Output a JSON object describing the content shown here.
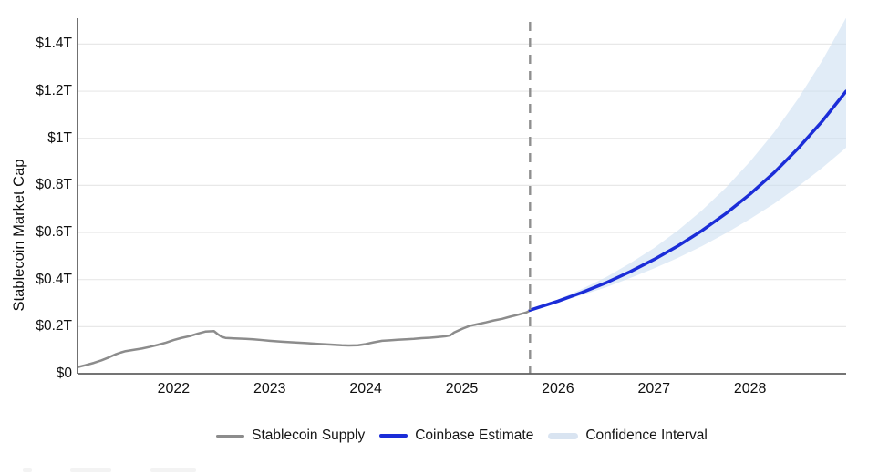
{
  "chart": {
    "y_axis_title": "Stablecoin Market Cap",
    "y_ticks": [
      {
        "label": "$0",
        "value": 0
      },
      {
        "label": "$0.2T",
        "value": 0.2
      },
      {
        "label": "$0.4T",
        "value": 0.4
      },
      {
        "label": "$0.6T",
        "value": 0.6
      },
      {
        "label": "$0.8T",
        "value": 0.8
      },
      {
        "label": "$1T",
        "value": 1.0
      },
      {
        "label": "$1.2T",
        "value": 1.2
      },
      {
        "label": "$1.4T",
        "value": 1.4
      }
    ],
    "x_ticks": [
      {
        "label": "2022",
        "year": 2022
      },
      {
        "label": "2023",
        "year": 2023
      },
      {
        "label": "2024",
        "year": 2024
      },
      {
        "label": "2025",
        "year": 2025
      },
      {
        "label": "2026",
        "year": 2026
      },
      {
        "label": "2027",
        "year": 2027
      },
      {
        "label": "2028",
        "year": 2028
      }
    ],
    "legend": [
      {
        "label": "Stablecoin Supply",
        "swatch": "line",
        "color": "#8c8c8c",
        "thickness": 3
      },
      {
        "label": "Coinbase Estimate",
        "swatch": "line",
        "color": "#1b2dd8",
        "thickness": 4
      },
      {
        "label": "Confidence Interval",
        "swatch": "band",
        "color": "#d9e4f1",
        "thickness": 7
      }
    ],
    "colors": {
      "historical_line": "#8c8c8c",
      "forecast_line": "#1b2dd8",
      "confidence_band": "#c9dcf0",
      "dashed_divider": "#8f8f8f",
      "gridline": "#e8e8e8",
      "axis": "#606060"
    }
  },
  "chart_data": {
    "type": "line",
    "title": "",
    "xlabel": "",
    "ylabel": "Stablecoin Market Cap",
    "xlim": [
      2021,
      2029
    ],
    "ylim": [
      0,
      1.51
    ],
    "grid": "horizontal",
    "legend_position": "bottom-center",
    "forecast_start": 2025.71,
    "units": "trillions USD",
    "series": [
      {
        "name": "Stablecoin Supply",
        "kind": "line",
        "color": "#8c8c8c",
        "width": 2.5,
        "x": [
          2021.0,
          2021.08,
          2021.17,
          2021.25,
          2021.33,
          2021.4,
          2021.45,
          2021.5,
          2021.58,
          2021.67,
          2021.75,
          2021.83,
          2021.92,
          2022.0,
          2022.08,
          2022.17,
          2022.25,
          2022.33,
          2022.42,
          2022.46,
          2022.5,
          2022.54,
          2022.63,
          2022.75,
          2022.83,
          2022.92,
          2023.0,
          2023.13,
          2023.25,
          2023.38,
          2023.5,
          2023.63,
          2023.75,
          2023.83,
          2023.92,
          2024.0,
          2024.08,
          2024.17,
          2024.25,
          2024.33,
          2024.42,
          2024.5,
          2024.58,
          2024.67,
          2024.75,
          2024.83,
          2024.88,
          2024.92,
          2025.0,
          2025.08,
          2025.17,
          2025.25,
          2025.33,
          2025.42,
          2025.5,
          2025.58,
          2025.67,
          2025.71
        ],
        "y": [
          0.028,
          0.036,
          0.046,
          0.057,
          0.07,
          0.083,
          0.09,
          0.096,
          0.101,
          0.107,
          0.114,
          0.122,
          0.132,
          0.143,
          0.152,
          0.16,
          0.17,
          0.179,
          0.181,
          0.168,
          0.157,
          0.152,
          0.15,
          0.148,
          0.146,
          0.143,
          0.14,
          0.136,
          0.133,
          0.13,
          0.127,
          0.124,
          0.121,
          0.12,
          0.121,
          0.126,
          0.133,
          0.14,
          0.142,
          0.144,
          0.146,
          0.148,
          0.151,
          0.153,
          0.156,
          0.159,
          0.163,
          0.175,
          0.19,
          0.203,
          0.211,
          0.218,
          0.226,
          0.233,
          0.242,
          0.25,
          0.26,
          0.268
        ]
      },
      {
        "name": "Coinbase Estimate",
        "kind": "line",
        "color": "#1b2dd8",
        "width": 3.5,
        "x": [
          2025.71,
          2026.0,
          2026.25,
          2026.5,
          2026.75,
          2027.0,
          2027.25,
          2027.5,
          2027.75,
          2028.0,
          2028.25,
          2028.5,
          2028.75,
          2029.0
        ],
        "y": [
          0.27,
          0.308,
          0.345,
          0.386,
          0.433,
          0.485,
          0.543,
          0.608,
          0.681,
          0.763,
          0.854,
          0.957,
          1.072,
          1.2
        ]
      },
      {
        "name": "Confidence Interval",
        "kind": "band",
        "color": "#c9dcf0",
        "opacity": 0.55,
        "x": [
          2025.71,
          2026.0,
          2026.25,
          2026.5,
          2026.75,
          2027.0,
          2027.25,
          2027.5,
          2027.75,
          2028.0,
          2028.25,
          2028.5,
          2028.75,
          2029.0
        ],
        "lower": [
          0.27,
          0.303,
          0.334,
          0.367,
          0.406,
          0.447,
          0.492,
          0.542,
          0.597,
          0.657,
          0.722,
          0.795,
          0.874,
          0.96
        ],
        "upper": [
          0.27,
          0.315,
          0.36,
          0.41,
          0.469,
          0.534,
          0.609,
          0.694,
          0.791,
          0.901,
          1.025,
          1.168,
          1.329,
          1.512
        ]
      }
    ],
    "dashed_divider": {
      "x": 2025.71,
      "dash": "10 8",
      "color": "#8f8f8f",
      "width": 2.4
    }
  }
}
